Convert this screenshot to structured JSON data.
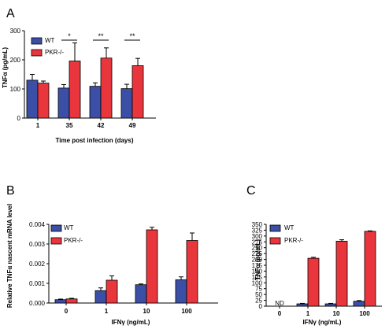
{
  "panels": {
    "A": "A",
    "B": "B",
    "C": "C"
  },
  "colors": {
    "WT": "#3c4fa6",
    "PKR": "#e8363c"
  },
  "chart_data": [
    {
      "id": "A",
      "type": "bar",
      "ylabel": "TNFα (pg/mL)",
      "xlabel": "Time post infection (days)",
      "ylim": [
        0,
        300
      ],
      "yticks": [
        "0",
        "100",
        "200",
        "300"
      ],
      "categories": [
        "1",
        "35",
        "42",
        "49"
      ],
      "legend": [
        "WT",
        "PKR-/-"
      ],
      "legend_position": "top-left",
      "series": [
        {
          "name": "WT",
          "values": [
            130,
            103,
            109,
            101
          ],
          "errors": [
            20,
            12,
            12,
            15
          ]
        },
        {
          "name": "PKR-/-",
          "values": [
            120,
            196,
            206,
            180
          ],
          "errors": [
            7,
            62,
            35,
            25
          ]
        }
      ],
      "annotations": [
        "",
        "*",
        "**",
        "**"
      ]
    },
    {
      "id": "B",
      "type": "bar",
      "ylabel": "Relative TNFα nascent mRNA level",
      "xlabel": "IFNγ (ng/mL)",
      "ylim": [
        0,
        0.004
      ],
      "yticks": [
        "0.000",
        "0.001",
        "0.002",
        "0.003",
        "0.004"
      ],
      "categories": [
        "0",
        "1",
        "10",
        "100"
      ],
      "legend": [
        "WT",
        "PKR-/-"
      ],
      "legend_position": "top-left",
      "series": [
        {
          "name": "WT",
          "values": [
            0.00017,
            0.00063,
            0.00093,
            0.00118
          ],
          "errors": [
            3e-05,
            0.00014,
            4e-05,
            0.00015
          ]
        },
        {
          "name": "PKR-/-",
          "values": [
            0.00021,
            0.00116,
            0.00372,
            0.00318
          ],
          "errors": [
            3e-05,
            0.00022,
            0.00013,
            0.00038
          ]
        }
      ]
    },
    {
      "id": "C",
      "type": "bar",
      "ylabel": "TNFα (pg/mL)",
      "xlabel": "IFNγ (ng/mL)",
      "ylim": [
        0,
        350
      ],
      "yticks": [
        "0",
        "25",
        "50",
        "75",
        "100",
        "125",
        "150",
        "175",
        "200",
        "225",
        "250",
        "275",
        "300",
        "325",
        "350"
      ],
      "categories": [
        "0",
        "1",
        "10",
        "100"
      ],
      "legend": [
        "WT",
        "PKR-/-"
      ],
      "legend_position": "top-left",
      "series": [
        {
          "name": "WT",
          "values": [
            0,
            10,
            10,
            21
          ],
          "errors": [
            0,
            2,
            2,
            3
          ]
        },
        {
          "name": "PKR-/-",
          "values": [
            0,
            205,
            278,
            320
          ],
          "errors": [
            0,
            4,
            6,
            2
          ]
        }
      ],
      "nd_label": "ND"
    }
  ]
}
